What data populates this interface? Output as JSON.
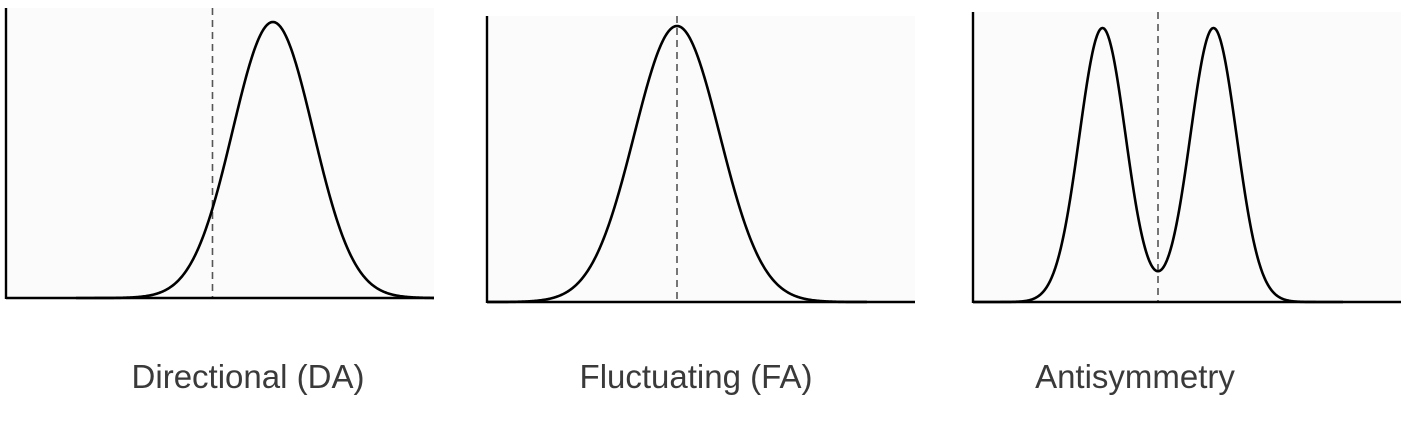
{
  "chart_data": [
    {
      "type": "line",
      "label": "Directional (DA)",
      "xlim": [
        -4,
        4
      ],
      "ylim": [
        0,
        1.1
      ],
      "reference_line_x": -0.95,
      "series": [
        {
          "curve": "normal",
          "components": [
            {
              "mean": 0.4,
              "sd": 0.9,
              "weight": 1
            }
          ]
        }
      ],
      "colors": {
        "curve": "#000000",
        "reference_line": "#555555",
        "background": "#fbfbfb"
      }
    },
    {
      "type": "line",
      "label": "Fluctuating (FA)",
      "xlim": [
        -4,
        4
      ],
      "ylim": [
        0,
        1.1
      ],
      "reference_line_x": 0,
      "series": [
        {
          "curve": "normal",
          "components": [
            {
              "mean": 0,
              "sd": 0.9,
              "weight": 1
            }
          ]
        }
      ],
      "colors": {
        "curve": "#000000",
        "reference_line": "#555555",
        "background": "#fbfbfb"
      }
    },
    {
      "type": "line",
      "label": "Antisymmetry",
      "xlim": [
        -4,
        4
      ],
      "ylim": [
        0,
        1.1
      ],
      "reference_line_x": 0,
      "series": [
        {
          "curve": "bimodal",
          "components": [
            {
              "mean": -1.2,
              "sd": 0.5,
              "weight": 1
            },
            {
              "mean": 1.2,
              "sd": 0.5,
              "weight": 1
            }
          ]
        }
      ],
      "colors": {
        "curve": "#000000",
        "reference_line": "#555555",
        "background": "#fbfbfb"
      }
    }
  ]
}
